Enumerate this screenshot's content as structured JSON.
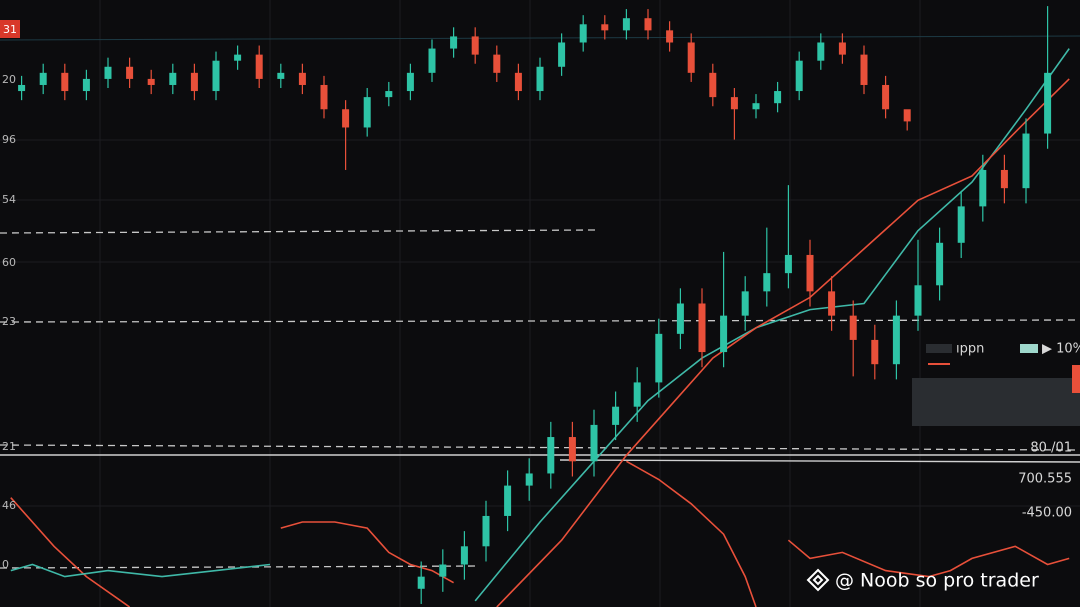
{
  "chart_data": {
    "type": "candlestick",
    "xlim": [
      0,
      100
    ],
    "ylim": [
      0,
      100
    ],
    "up_color": "#2ec4a6",
    "down_color": "#e8503a",
    "candles": {
      "x": [
        2,
        4,
        6,
        8,
        10,
        12,
        14,
        16,
        18,
        20,
        22,
        24,
        26,
        28,
        30,
        32,
        34,
        36,
        38,
        40,
        42,
        44,
        46,
        48,
        50,
        52,
        54,
        56,
        58,
        60,
        62,
        64,
        66,
        68,
        70,
        72,
        74,
        76,
        78,
        80,
        82,
        84,
        39,
        41,
        43,
        45,
        47,
        49,
        51,
        53,
        55,
        57,
        59,
        61,
        63,
        65,
        67,
        69,
        71,
        73,
        75,
        77,
        79,
        81,
        83,
        85,
        87,
        89,
        91,
        93,
        95,
        97
      ],
      "open": [
        85,
        86,
        88,
        85,
        87,
        89,
        87,
        86,
        88,
        85,
        90,
        91,
        87,
        88,
        86,
        82,
        79,
        84,
        85,
        88,
        92,
        94,
        91,
        88,
        85,
        89,
        93,
        96,
        95,
        97,
        95,
        93,
        88,
        84,
        82,
        83,
        85,
        90,
        93,
        91,
        86,
        82,
        3,
        5,
        7,
        10,
        15,
        20,
        22,
        28,
        24,
        30,
        33,
        37,
        45,
        50,
        42,
        48,
        52,
        55,
        58,
        52,
        48,
        44,
        40,
        48,
        53,
        60,
        66,
        72,
        69,
        78
      ],
      "close": [
        86,
        88,
        85,
        87,
        89,
        87,
        86,
        88,
        85,
        90,
        91,
        87,
        88,
        86,
        82,
        79,
        84,
        85,
        88,
        92,
        94,
        91,
        88,
        85,
        89,
        93,
        96,
        95,
        97,
        95,
        93,
        88,
        84,
        82,
        83,
        85,
        90,
        93,
        91,
        86,
        82,
        80,
        5,
        7,
        10,
        15,
        20,
        22,
        28,
        24,
        30,
        33,
        37,
        45,
        50,
        42,
        48,
        52,
        55,
        58,
        52,
        48,
        44,
        40,
        48,
        53,
        60,
        66,
        72,
        69,
        78,
        88
      ],
      "high": [
        87.5,
        89.5,
        89.5,
        88.5,
        90.5,
        90.5,
        88.5,
        89.5,
        89.5,
        91.5,
        92.5,
        92.5,
        89.5,
        89.5,
        87.5,
        83.5,
        85.5,
        86.5,
        89.5,
        93.5,
        95.5,
        95.5,
        92.5,
        89.5,
        90.5,
        94.5,
        97.5,
        97.5,
        98.5,
        98.5,
        96.5,
        94.5,
        89.5,
        85.5,
        84.5,
        86.5,
        91.5,
        94.5,
        94.5,
        92.5,
        87.5,
        81.5,
        7.5,
        9.5,
        12.5,
        17.5,
        22.5,
        24.5,
        30.5,
        30.5,
        32.5,
        35.5,
        39.5,
        47.5,
        52.5,
        52.5,
        58.5,
        54.5,
        62.5,
        69.5,
        60.5,
        54.5,
        50.5,
        46.5,
        50.5,
        60.5,
        62.5,
        68.5,
        74.5,
        74.5,
        80.5,
        99
      ],
      "low": [
        83.5,
        84.5,
        83.5,
        83.5,
        85.5,
        85.5,
        84.5,
        84.5,
        83.5,
        83.5,
        88.5,
        85.5,
        85.5,
        84.5,
        80.5,
        72,
        77.5,
        82.5,
        83.5,
        86.5,
        90.5,
        89.5,
        86.5,
        83.5,
        83.5,
        87.5,
        91.5,
        93.5,
        93.5,
        93.5,
        91.5,
        86.5,
        82.5,
        77,
        80.5,
        81.5,
        83.5,
        88.5,
        89.5,
        84.5,
        80.5,
        78.5,
        0.5,
        2.5,
        4.5,
        7.5,
        12.5,
        17.5,
        19.5,
        21.5,
        21.5,
        27.5,
        30.5,
        34.5,
        42.5,
        39.5,
        39.5,
        45.5,
        49.5,
        52.5,
        49.5,
        45.5,
        38,
        37.5,
        37.5,
        45.5,
        50.5,
        57.5,
        63.5,
        66.5,
        66.5,
        75.5
      ]
    },
    "lines": [
      {
        "color": "#3fb9a8",
        "x": [
          44,
          50,
          55,
          60,
          65,
          70,
          75,
          80,
          85,
          90,
          95,
          99
        ],
        "values": [
          1,
          14,
          24,
          34,
          41,
          46,
          49,
          50,
          62,
          70,
          82,
          92
        ]
      },
      {
        "color": "#e8503a",
        "x": [
          46,
          52,
          58,
          62,
          66,
          70,
          75,
          80,
          85,
          90,
          95,
          99
        ],
        "values": [
          0,
          11,
          25,
          33,
          41,
          46,
          51,
          59,
          67,
          71,
          80,
          87
        ]
      },
      {
        "color": "#e8503a",
        "x": [
          1,
          5,
          8,
          12
        ],
        "values": [
          18,
          10,
          5,
          0
        ]
      },
      {
        "color": "#e8503a",
        "x": [
          26,
          28,
          31,
          34,
          36,
          38,
          40,
          42
        ],
        "values": [
          13,
          14,
          14,
          13,
          9,
          7,
          6,
          4
        ]
      },
      {
        "color": "#e8503a",
        "x": [
          58,
          61,
          64,
          67,
          69,
          70
        ],
        "values": [
          24,
          21,
          17,
          12,
          5,
          0
        ]
      },
      {
        "color": "#e8503a",
        "x": [
          73,
          75,
          78,
          82,
          86,
          88,
          90,
          94,
          97,
          99
        ],
        "values": [
          11,
          8,
          9,
          6,
          5,
          6,
          8,
          10,
          7,
          8
        ]
      },
      {
        "color": "#3fb9a8",
        "x": [
          1,
          3,
          6,
          10,
          15,
          20,
          25
        ],
        "values": [
          6,
          7,
          5,
          6,
          5,
          6,
          7
        ]
      }
    ]
  },
  "badge": "31",
  "left_labels": [
    "20",
    "96",
    "54",
    "60",
    "23",
    "21",
    "46",
    "0"
  ],
  "right_labels": [
    "80 /01",
    "700.555",
    "-450.00"
  ],
  "legend": {
    "label": "ıppn",
    "value": "▶ 10%"
  },
  "watermark": "@ Noob so pro trader"
}
